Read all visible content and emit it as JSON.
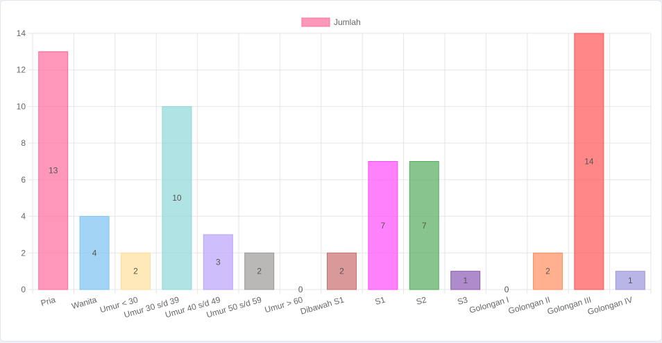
{
  "chart_data": {
    "type": "bar",
    "legend": {
      "position": "top",
      "label": "Jumlah",
      "color": "#ff6b9d"
    },
    "categories": [
      "Pria",
      "Wanita",
      "Umur < 30",
      "Umur 30 s/d 39",
      "Umur 40 s/d 49",
      "Umur 50 s/d 59",
      "Umur > 60",
      "Dibawah S1",
      "S1",
      "S2",
      "S3",
      "Golongan I",
      "Golongan II",
      "Golongan III",
      "Golongan IV"
    ],
    "series": [
      {
        "name": "Jumlah",
        "values": [
          13,
          4,
          2,
          10,
          3,
          2,
          0,
          2,
          7,
          7,
          1,
          0,
          2,
          14,
          1
        ]
      }
    ],
    "colors": [
      "#ff6b9d",
      "#7cc2f2",
      "#ffe09a",
      "#8fd8d8",
      "#b9a2fb",
      "#9c9899",
      "#c9cbcf",
      "#c96e6e",
      "#ff4dfb",
      "#56ad5c",
      "#8b5ab5",
      "#c9cbcf",
      "#ff8f5e",
      "#ff5454",
      "#9d95dd"
    ],
    "yticks": [
      0,
      2,
      4,
      6,
      8,
      10,
      12,
      14
    ],
    "ylim": [
      0,
      14
    ],
    "grid": true,
    "data_labels": true
  }
}
